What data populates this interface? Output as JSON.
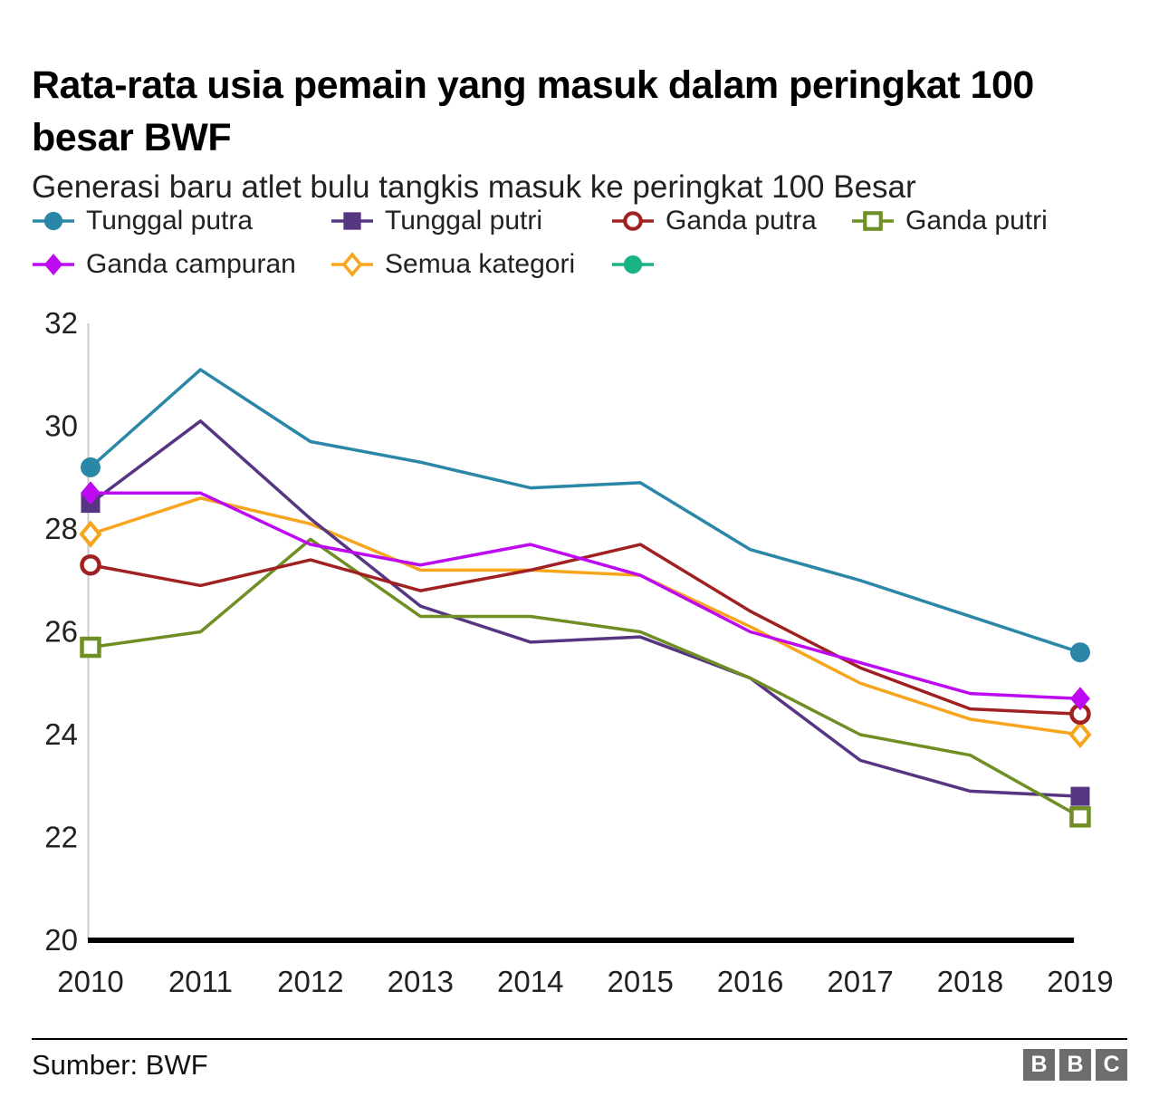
{
  "header": {
    "title": "Rata-rata usia pemain yang masuk dalam peringkat 100 besar BWF",
    "subtitle": "Generasi baru atlet bulu tangkis masuk ke peringkat 100 Besar"
  },
  "footer": {
    "source": "Sumber: BWF",
    "logo_letters": [
      "B",
      "B",
      "C"
    ]
  },
  "chart_data": {
    "type": "line",
    "x": [
      2010,
      2011,
      2012,
      2013,
      2014,
      2015,
      2016,
      2017,
      2018,
      2019
    ],
    "x_tick_labels": [
      "2010",
      "2011",
      "2012",
      "2013",
      "2014",
      "2015",
      "2016",
      "2017",
      "2018",
      "2019"
    ],
    "y_ticks": [
      32,
      30,
      28,
      26,
      24,
      22,
      20
    ],
    "ylim": [
      20,
      32
    ],
    "xlabel": "",
    "ylabel": "",
    "grid": false,
    "legend_position": "top",
    "axis_color": "#000000",
    "spine_color": "#cbcbcb",
    "series": [
      {
        "name": "Tunggal putra",
        "color": "#2b87a8",
        "marker": "circle",
        "values": [
          29.2,
          31.1,
          29.7,
          29.3,
          28.8,
          28.9,
          27.6,
          27.0,
          26.3,
          25.6
        ]
      },
      {
        "name": "Tunggal putri",
        "color": "#563583",
        "marker": "square",
        "values": [
          28.5,
          30.1,
          28.2,
          26.5,
          25.8,
          25.9,
          25.1,
          23.5,
          22.9,
          22.8
        ]
      },
      {
        "name": "Ganda putra",
        "color": "#a02121",
        "marker": "circle-open",
        "values": [
          27.3,
          26.9,
          27.4,
          26.8,
          27.2,
          27.7,
          26.4,
          25.3,
          24.5,
          24.4
        ]
      },
      {
        "name": "Ganda putri",
        "color": "#6f8e23",
        "marker": "square-open",
        "values": [
          25.7,
          26.0,
          27.8,
          26.3,
          26.3,
          26.0,
          25.1,
          24.0,
          23.6,
          22.4
        ]
      },
      {
        "name": "Ganda campuran",
        "color": "#bd0af1",
        "marker": "diamond",
        "values": [
          28.7,
          28.7,
          27.7,
          27.3,
          27.7,
          27.1,
          26.0,
          25.4,
          24.8,
          24.7
        ]
      },
      {
        "name": "Semua kategori",
        "color": "#f7a51c",
        "marker": "diamond-open",
        "values": [
          27.9,
          28.6,
          28.1,
          27.2,
          27.2,
          27.1,
          26.1,
          25.0,
          24.3,
          24.0
        ]
      },
      {
        "name": "",
        "color": "#19b386",
        "marker": "circle",
        "values": []
      }
    ]
  }
}
